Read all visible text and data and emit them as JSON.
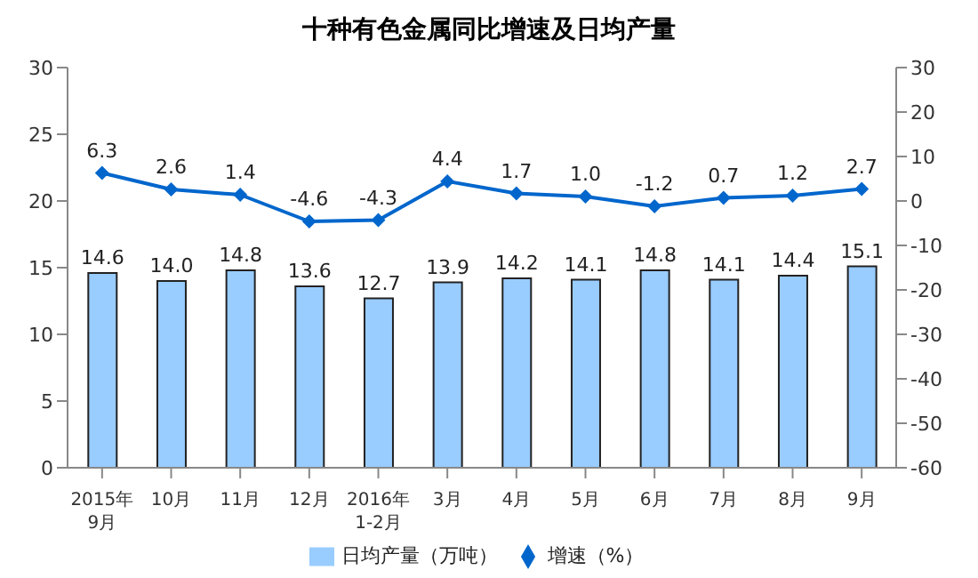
{
  "chart_data": {
    "type": "bar",
    "title": "十种有色金属同比增速及日均产量",
    "categories": [
      "2015年\n9月",
      "10月",
      "11月",
      "12月",
      "2016年\n1-2月",
      "3月",
      "4月",
      "5月",
      "6月",
      "7月",
      "8月",
      "9月"
    ],
    "series": [
      {
        "name": "日均产量（万吨）",
        "color": "#99ccff",
        "values": [
          14.6,
          14.0,
          14.8,
          13.6,
          12.7,
          13.9,
          14.2,
          14.1,
          14.8,
          14.1,
          14.4,
          15.1
        ],
        "value_labels": [
          "14.6",
          "14.0",
          "14.8",
          "13.6",
          "12.7",
          "13.9",
          "14.2",
          "14.1",
          "14.8",
          "14.1",
          "14.4",
          "15.1"
        ]
      },
      {
        "name": "增速（%）",
        "type": "line",
        "axis": "y2",
        "color": "#0066cc",
        "values": [
          6.3,
          2.6,
          1.4,
          -4.6,
          -4.3,
          4.4,
          1.7,
          1.0,
          -1.2,
          0.7,
          1.2,
          2.7
        ],
        "value_labels": [
          "6.3",
          "2.6",
          "1.4",
          "-4.6",
          "-4.3",
          "4.4",
          "1.7",
          "1.0",
          "-1.2",
          "0.7",
          "1.2",
          "2.7"
        ]
      }
    ],
    "ylim": [
      0,
      30
    ],
    "yticks": [
      0,
      5,
      10,
      15,
      20,
      25,
      30
    ],
    "y2lim": [
      -60,
      30
    ],
    "y2ticks": [
      -60,
      -50,
      -40,
      -30,
      -20,
      -10,
      0,
      10,
      20,
      30
    ],
    "legend": "bottom",
    "marker": "diamond",
    "line_style": "solid"
  }
}
